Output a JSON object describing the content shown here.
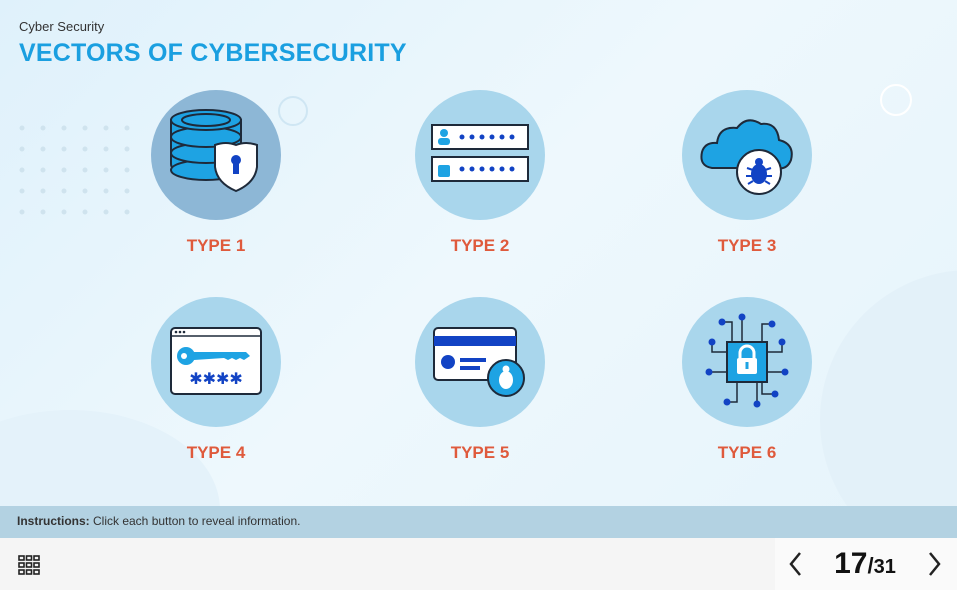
{
  "header": {
    "subtitle": "Cyber Security",
    "title": "VECTORS OF CYBERSECURITY"
  },
  "buttons": [
    {
      "label": "TYPE 1",
      "icon": "database-shield-icon",
      "selected": true
    },
    {
      "label": "TYPE 2",
      "icon": "login-credentials-icon",
      "selected": false
    },
    {
      "label": "TYPE 3",
      "icon": "cloud-bug-icon",
      "selected": false
    },
    {
      "label": "TYPE 4",
      "icon": "browser-key-password-icon",
      "selected": false
    },
    {
      "label": "TYPE 5",
      "icon": "card-bug-icon",
      "selected": false
    },
    {
      "label": "TYPE 6",
      "icon": "circuit-lock-icon",
      "selected": false
    }
  ],
  "instructions": {
    "prefix": "Instructions:",
    "text": " Click each button to reveal information."
  },
  "footer": {
    "current_page": "17",
    "separator": "/",
    "total_pages": "31",
    "menu_icon": "grid-menu-icon"
  },
  "colors": {
    "title": "#1a9fe0",
    "label": "#df5a3c",
    "circle": "#a9d6ec",
    "circle_selected": "#8db7d6",
    "instructions_bar": "#b3d2e2"
  }
}
